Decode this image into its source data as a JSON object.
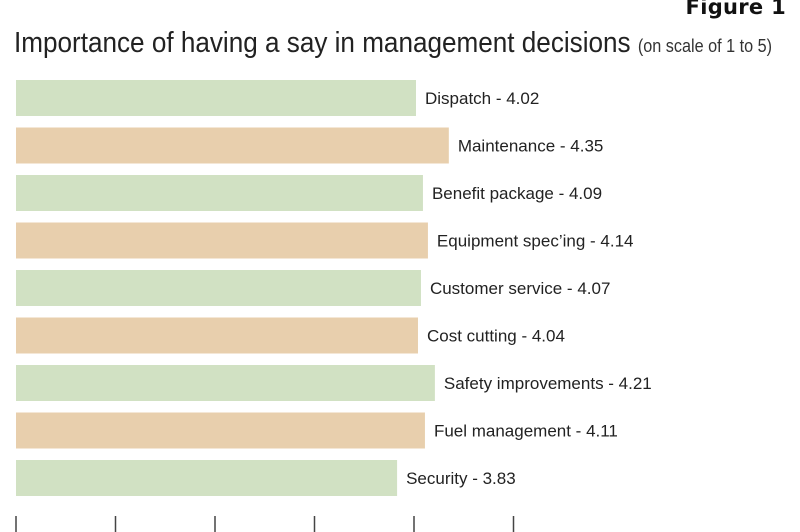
{
  "figure_label": "Figure 1",
  "title": "Importance of having a say in management decisions",
  "subtitle": "(on scale of 1 to 5)",
  "colors": {
    "green": "#d1e1c3",
    "tan": "#e8cfad",
    "axis": "#444444"
  },
  "chart_data": {
    "type": "bar",
    "orientation": "horizontal",
    "title": "Importance of having a say in management decisions",
    "subtitle": "(on scale of 1 to 5)",
    "categories": [
      "Dispatch",
      "Maintenance",
      "Benefit package",
      "Equipment spec'ing",
      "Customer service",
      "Cost cutting",
      "Safety improvements",
      "Fuel management",
      "Security"
    ],
    "values": [
      4.02,
      4.35,
      4.09,
      4.14,
      4.07,
      4.04,
      4.21,
      4.11,
      3.83
    ],
    "labels": [
      "Dispatch - 4.02",
      "Maintenance - 4.35",
      "Benefit package - 4.09",
      "Equipment spec’ing - 4.14",
      "Customer service - 4.07",
      "Cost cutting - 4.04",
      "Safety improvements - 4.21",
      "Fuel management - 4.11",
      "Security - 3.83"
    ],
    "bar_colors": [
      "green",
      "tan",
      "green",
      "tan",
      "green",
      "tan",
      "green",
      "tan",
      "green"
    ],
    "xlim": [
      0,
      5
    ],
    "ticks": [
      0,
      1,
      2,
      3,
      4,
      5
    ],
    "grid": false,
    "legend": "none"
  }
}
